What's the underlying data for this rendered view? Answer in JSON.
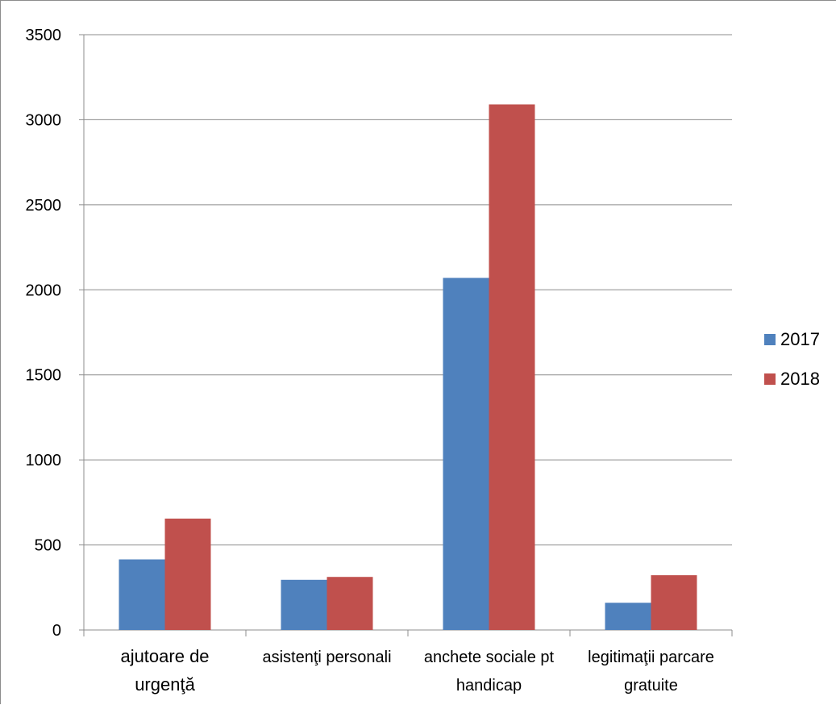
{
  "chart_data": {
    "type": "bar",
    "title": "",
    "xlabel": "",
    "ylabel": "",
    "categories": [
      [
        "ajutoare de",
        "urgenţă"
      ],
      [
        "asistenţi personali"
      ],
      [
        "anchete sociale pt",
        "handicap"
      ],
      [
        "legitimaţii parcare",
        "gratuite"
      ]
    ],
    "series": [
      {
        "name": "2017",
        "color": "#4F81BD",
        "values": [
          415,
          295,
          2070,
          160
        ]
      },
      {
        "name": "2018",
        "color": "#C0504D",
        "values": [
          655,
          312,
          3090,
          322
        ]
      }
    ],
    "ylim": [
      0,
      3500
    ],
    "yticks": [
      0,
      500,
      1000,
      1500,
      2000,
      2500,
      3000,
      3500
    ],
    "grid": true,
    "legend_position": "right"
  }
}
